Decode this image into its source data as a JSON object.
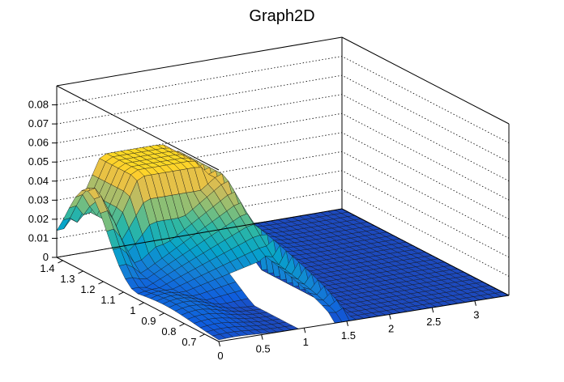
{
  "chart_data": {
    "type": "surface",
    "title": "Graph2D",
    "xlabel": "",
    "ylabel": "",
    "zlabel": "",
    "xlim": [
      0,
      3.4
    ],
    "ylim": [
      0.63,
      1.43
    ],
    "zlim": [
      0,
      0.09
    ],
    "grid": true,
    "x_ticks": [
      "0",
      "0.5",
      "1",
      "1.5",
      "2",
      "2.5",
      "3"
    ],
    "x_tick_values": [
      0,
      0.5,
      1,
      1.5,
      2,
      2.5,
      3
    ],
    "y_ticks": [
      "0.7",
      "0.8",
      "0.9",
      "1",
      "1.1",
      "1.2",
      "1.3",
      "1.4"
    ],
    "y_tick_values": [
      0.7,
      0.8,
      0.9,
      1.0,
      1.1,
      1.2,
      1.3,
      1.4
    ],
    "z_ticks": [
      "0",
      "0.01",
      "0.02",
      "0.03",
      "0.04",
      "0.05",
      "0.06",
      "0.07",
      "0.08"
    ],
    "z_tick_values": [
      0,
      0.01,
      0.02,
      0.03,
      0.04,
      0.05,
      0.06,
      0.07,
      0.08
    ],
    "surface_features": [
      {
        "kind": "ridge",
        "x": 0.05,
        "y_from": 1.05,
        "y_to": 1.4,
        "peak_y": 1.28,
        "peak_z": 0.045
      },
      {
        "kind": "ridge",
        "x": 1.4,
        "y_from": 0.63,
        "y_to": 1.43,
        "z_back": 0.052,
        "z_front": 0.0
      },
      {
        "kind": "ridge",
        "x": 1.5,
        "y_from": 0.63,
        "y_to": 1.43,
        "z_back": 0.05,
        "z_front": 0.0
      },
      {
        "kind": "plateau",
        "x_from": 0.2,
        "x_to": 1.6,
        "y_from": 1.25,
        "y_to": 1.43,
        "z": 0.05
      },
      {
        "kind": "ramp",
        "x_from": 0.0,
        "x_to": 1.4,
        "y": 1.0,
        "z_low": 0.0,
        "z_high": 0.045
      },
      {
        "kind": "hole",
        "x_from": 0.95,
        "x_to": 1.38,
        "y_from": 0.63,
        "y_to": 0.97
      }
    ],
    "palette": [
      "#352a87",
      "#0f5cdd",
      "#1481d6",
      "#06a4ca",
      "#2eb7a4",
      "#87bf77",
      "#d1bb59",
      "#fec832",
      "#f9fb0e"
    ]
  }
}
